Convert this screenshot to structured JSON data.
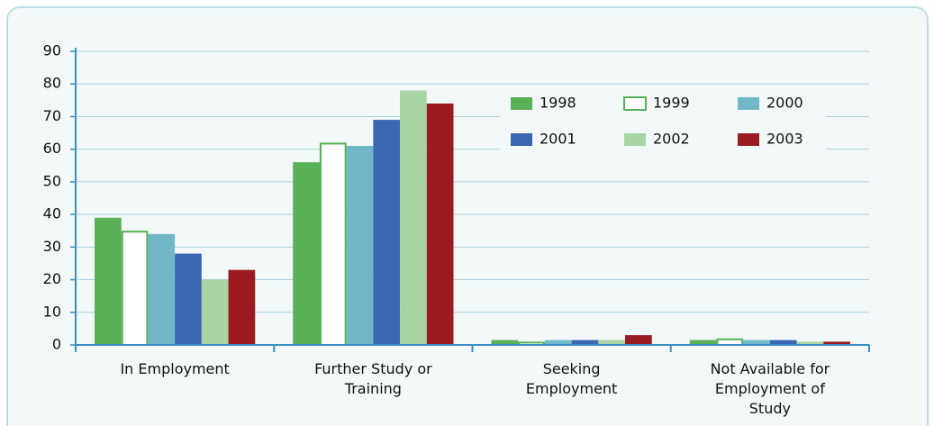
{
  "chart_data": {
    "type": "bar",
    "categories": [
      "In Employment",
      "Further Study or Training",
      "Seeking Employment",
      "Not Available for Employment of Study"
    ],
    "series": [
      {
        "name": "1998",
        "color": "#58b057",
        "values": [
          39,
          56,
          1.5,
          1.5
        ]
      },
      {
        "name": "1999",
        "color": "#58b057",
        "hollow": true,
        "values": [
          35,
          62,
          1,
          2
        ]
      },
      {
        "name": "2000",
        "color": "#70b8c8",
        "values": [
          34,
          61,
          1.5,
          1.5
        ]
      },
      {
        "name": "2001",
        "color": "#3a67b0",
        "values": [
          28,
          69,
          1.5,
          1.5
        ]
      },
      {
        "name": "2002",
        "color": "#a9d5a6",
        "values": [
          20,
          78,
          1.5,
          1
        ]
      },
      {
        "name": "2003",
        "color": "#9a1c20",
        "values": [
          23,
          74,
          3,
          1
        ]
      }
    ],
    "ylim": [
      0,
      90
    ],
    "yticks": [
      0,
      10,
      20,
      30,
      40,
      50,
      60,
      70,
      80,
      90
    ],
    "grid": true,
    "legend": "upper right"
  }
}
